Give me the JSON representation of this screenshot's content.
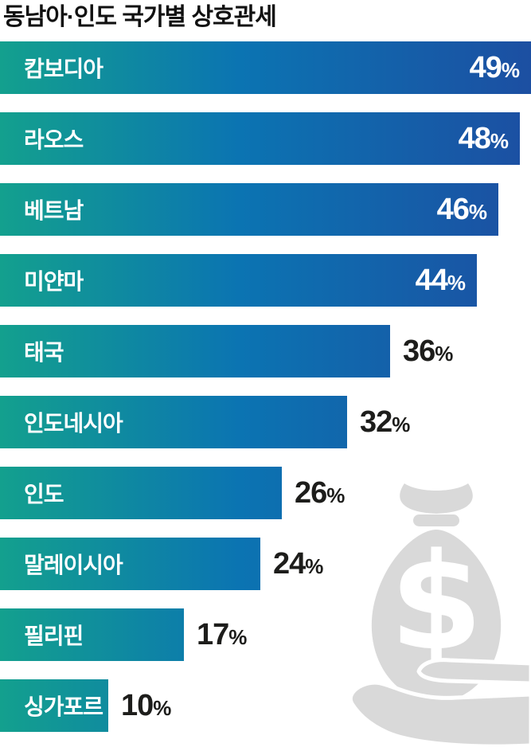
{
  "title": "동남아·인도 국가별 상호관세",
  "colors": {
    "gradient_start": "#13a08e",
    "gradient_mid": "#0b74b2",
    "gradient_end": "#1c4fa2",
    "label_inside": "#ffffff",
    "value_outside": "#1d1d1b",
    "title_color": "#111111",
    "icon_gray": "#d9d9d9",
    "background": "#ffffff"
  },
  "chart_data": {
    "type": "bar",
    "orientation": "horizontal",
    "title": "동남아·인도 국가별 상호관세",
    "categories": [
      "캄보디아",
      "라오스",
      "베트남",
      "미얀마",
      "태국",
      "인도네시아",
      "인도",
      "말레이시아",
      "필리핀",
      "싱가포르"
    ],
    "values": [
      49,
      48,
      46,
      44,
      36,
      32,
      26,
      24,
      17,
      10
    ],
    "unit": "%",
    "value_labels": [
      "49%",
      "48%",
      "46%",
      "44%",
      "36%",
      "32%",
      "26%",
      "24%",
      "17%",
      "10%"
    ],
    "value_label_inside": [
      true,
      true,
      true,
      true,
      false,
      false,
      false,
      false,
      false,
      false
    ],
    "xlim": [
      0,
      49
    ],
    "grid": false,
    "legend": false,
    "bar_gradient_anchored_to_full_width": true
  },
  "icon": {
    "name": "money-bag-in-hand",
    "symbol": "$"
  }
}
